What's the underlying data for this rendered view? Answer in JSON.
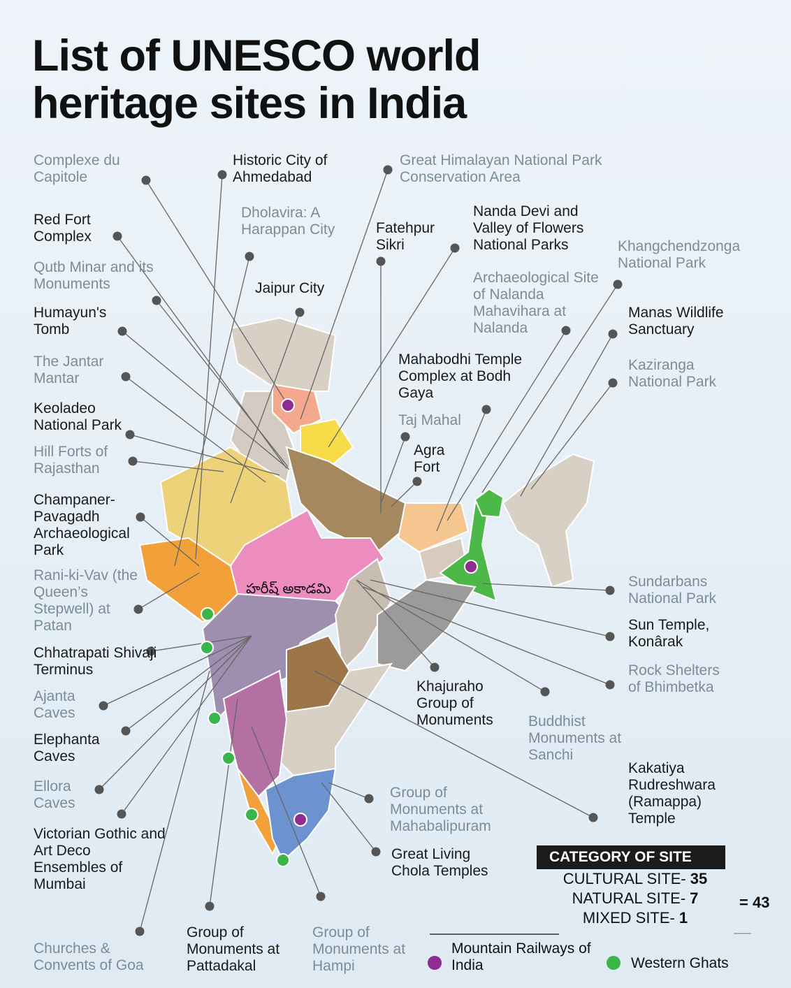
{
  "title": "List of UNESCO world heritage sites in India",
  "watermark": "హరీష్ అకాడమి",
  "sites": [
    {
      "name": "Complexe du Capitole",
      "color": "#7b8c9b"
    },
    {
      "name": "Historic City of Ahmedabad",
      "color": "#1a1a1a"
    },
    {
      "name": "Great Himalayan National Park Conservation Area",
      "color": "#7b8c9b"
    },
    {
      "name": "Red Fort Complex",
      "color": "#1a1a1a"
    },
    {
      "name": "Dholavira: A Harappan City",
      "color": "#7b8c9b"
    },
    {
      "name": "Fatehpur Sikri",
      "color": "#1a1a1a"
    },
    {
      "name": "Nanda Devi and Valley of Flowers National Parks",
      "color": "#1a1a1a"
    },
    {
      "name": "Khangchendzonga National Park",
      "color": "#7b8c9b"
    },
    {
      "name": "Qutb Minar and its Monuments",
      "color": "#7b8c9b"
    },
    {
      "name": "Jaipur City",
      "color": "#1a1a1a"
    },
    {
      "name": "Archaeological Site of Nalanda Mahavihara at Nalanda",
      "color": "#7b8c9b"
    },
    {
      "name": "Manas Wildlife Sanctuary",
      "color": "#1a1a1a"
    },
    {
      "name": "Humayun's Tomb",
      "color": "#1a1a1a"
    },
    {
      "name": "Mahabodhi Temple Complex at Bodh Gaya",
      "color": "#1a1a1a"
    },
    {
      "name": "The Jantar Mantar",
      "color": "#7b8c9b"
    },
    {
      "name": "Kaziranga National Park",
      "color": "#7b8c9b"
    },
    {
      "name": "Keoladeo National Park",
      "color": "#1a1a1a"
    },
    {
      "name": "Taj Mahal",
      "color": "#7b8c9b"
    },
    {
      "name": "Agra Fort",
      "color": "#1a1a1a"
    },
    {
      "name": "Hill Forts of Rajasthan",
      "color": "#7b8c9b"
    },
    {
      "name": "Champaner-Pavagadh Archaeological Park",
      "color": "#1a1a1a"
    },
    {
      "name": "Rani-ki-Vav (the Queen’s Stepwell) at Patan",
      "color": "#7b8c9b"
    },
    {
      "name": "Sundarbans National Park",
      "color": "#7b8c9b"
    },
    {
      "name": "Sun Temple, Konârak",
      "color": "#1a1a1a"
    },
    {
      "name": "Chhatrapati Shivaji Terminus",
      "color": "#1a1a1a"
    },
    {
      "name": "Rock Shelters of Bhimbetka",
      "color": "#7b8c9b"
    },
    {
      "name": "Khajuraho Group of Monuments",
      "color": "#1a1a1a"
    },
    {
      "name": "Ajanta Caves",
      "color": "#7b8c9b"
    },
    {
      "name": "Buddhist Monuments at Sanchi",
      "color": "#7b8c9b"
    },
    {
      "name": "Elephanta Caves",
      "color": "#1a1a1a"
    },
    {
      "name": "Kakatiya Rudreshwara (Ramappa) Temple",
      "color": "#1a1a1a"
    },
    {
      "name": "Ellora Caves",
      "color": "#7b8c9b"
    },
    {
      "name": "Group of Monuments at Mahabalipuram",
      "color": "#7b8c9b"
    },
    {
      "name": "Victorian Gothic and Art Deco Ensembles of Mumbai",
      "color": "#1a1a1a"
    },
    {
      "name": "Great Living Chola Temples",
      "color": "#1a1a1a"
    },
    {
      "name": "Churches & Convents of Goa",
      "color": "#7b8c9b"
    },
    {
      "name": "Group of Monuments at Pattadakal",
      "color": "#1a1a1a"
    },
    {
      "name": "Group of Monuments at Hampi",
      "color": "#7b8c9b"
    }
  ],
  "legend": [
    {
      "label": "Mountain Railways of India",
      "color": "#8e2c8f"
    },
    {
      "label": "Western Ghats",
      "color": "#3ab54a"
    }
  ],
  "category_box": {
    "title": "CATEGORY OF SITE",
    "rows": [
      {
        "label": "CULTURAL SITE-",
        "count": "35"
      },
      {
        "label": "NATURAL SITE-",
        "count": "7"
      },
      {
        "label": "MIXED SITE-",
        "count": "1"
      }
    ],
    "total": "= 43"
  }
}
